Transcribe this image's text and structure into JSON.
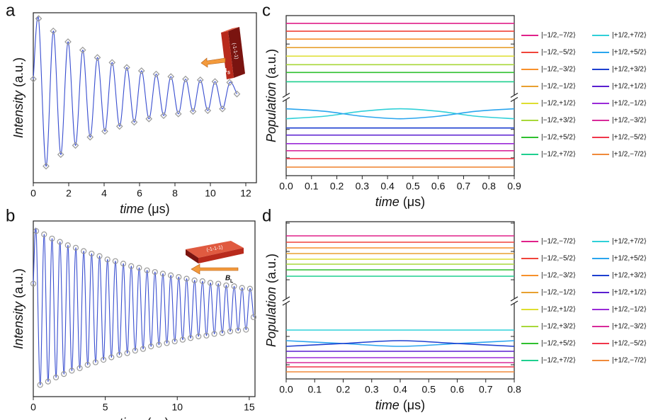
{
  "chart_data": [
    {
      "type": "line",
      "panel_label": "a",
      "y_label": "Intensity (a.u.)",
      "x_label": "time (μs)",
      "xlim": [
        0,
        12.6
      ],
      "xticks": [
        0,
        2,
        4,
        6,
        8,
        10,
        12
      ],
      "ylim": [
        -1.05,
        1.0
      ],
      "inset": {
        "text": "B",
        "subscript": "S",
        "face": "(-1-1-1)"
      },
      "series": [
        {
          "color": "#3a4fd0",
          "marker": "diamond",
          "marker_color": "#9a9a9a",
          "x": [
            0,
            0.3,
            0.72,
            1.13,
            1.55,
            1.96,
            2.38,
            2.79,
            3.21,
            3.62,
            4.04,
            4.45,
            4.87,
            5.28,
            5.7,
            6.11,
            6.53,
            6.94,
            7.36,
            7.77,
            8.19,
            8.6,
            9.02,
            9.43,
            9.85,
            10.26,
            10.68,
            11.09,
            11.5
          ],
          "values": [
            0.2,
            0.93,
            -0.85,
            0.78,
            -0.71,
            0.65,
            -0.6,
            0.55,
            -0.5,
            0.46,
            -0.43,
            0.4,
            -0.37,
            0.34,
            -0.32,
            0.3,
            -0.28,
            0.26,
            -0.24,
            0.23,
            -0.22,
            0.2,
            -0.19,
            0.19,
            -0.18,
            0.17,
            -0.16,
            0.16,
            0.02
          ]
        }
      ]
    },
    {
      "type": "line",
      "panel_label": "b",
      "y_label": "Intensity (a.u.)",
      "x_label": "time (μs)",
      "xlim": [
        0,
        15.4
      ],
      "xticks": [
        0,
        5,
        10,
        15
      ],
      "ylim": [
        -1.05,
        1.05
      ],
      "inset": {
        "text": "B",
        "subscript": "L",
        "face": "(-1-1-1)"
      },
      "series": [
        {
          "color": "#3a4fd0",
          "marker": "circle",
          "marker_color": "#9a9a9a",
          "x": [
            0,
            0.2,
            0.475,
            0.75,
            1.025,
            1.3,
            1.575,
            1.85,
            2.125,
            2.4,
            2.675,
            2.95,
            3.225,
            3.5,
            3.775,
            4.05,
            4.325,
            4.6,
            4.875,
            5.15,
            5.425,
            5.7,
            5.975,
            6.25,
            6.525,
            6.8,
            7.075,
            7.35,
            7.625,
            7.9,
            8.175,
            8.45,
            8.725,
            9.0,
            9.275,
            9.55,
            9.825,
            10.1,
            10.375,
            10.65,
            10.925,
            11.2,
            11.475,
            11.75,
            12.025,
            12.3,
            12.575,
            12.85,
            13.125,
            13.4,
            13.675,
            13.95,
            14.225,
            14.5,
            14.775,
            15.05,
            15.3
          ],
          "values": [
            0.3,
            0.93,
            -0.91,
            0.89,
            -0.87,
            0.84,
            -0.82,
            0.8,
            -0.78,
            0.76,
            -0.74,
            0.73,
            -0.71,
            0.69,
            -0.67,
            0.66,
            -0.64,
            0.63,
            -0.61,
            0.59,
            -0.58,
            0.57,
            -0.55,
            0.54,
            -0.53,
            0.51,
            -0.5,
            0.49,
            -0.48,
            0.46,
            -0.45,
            0.44,
            -0.43,
            0.42,
            -0.41,
            0.4,
            -0.39,
            0.38,
            -0.37,
            0.36,
            -0.35,
            0.34,
            -0.33,
            0.33,
            -0.32,
            0.31,
            -0.3,
            0.3,
            -0.29,
            0.28,
            -0.27,
            0.27,
            -0.26,
            0.25,
            -0.25,
            0.24,
            -0.1
          ]
        }
      ]
    },
    {
      "type": "line",
      "panel_label": "c",
      "y_label": "Population (a.u.)",
      "x_label": "time (μs)",
      "x": [
        0,
        0.15,
        0.3,
        0.45,
        0.6,
        0.75,
        0.9
      ],
      "xlim": [
        0,
        0.9
      ],
      "xticks": [
        {
          "value": 0,
          "label": "0.0"
        },
        0.1,
        0.2,
        0.3,
        0.4,
        0.5,
        0.6,
        0.7,
        0.8,
        0.9
      ],
      "ylim": [
        0,
        22.5
      ],
      "yticks": [
        2.5,
        6.5,
        14.5,
        18.5,
        22.5
      ],
      "ytick_labels": false,
      "axis_break": 11,
      "legend": "right",
      "series": [
        {
          "name": "|−1/2,−7/2⟩",
          "color": "#e0218a",
          "values": [
            21.4,
            21.4,
            21.4,
            21.4,
            21.4,
            21.4,
            21.4
          ]
        },
        {
          "name": "|−1/2,−5/2⟩",
          "color": "#f0443a",
          "values": [
            20.3,
            20.3,
            20.3,
            20.3,
            20.3,
            20.3,
            20.3
          ]
        },
        {
          "name": "|−1/2,−3/2⟩",
          "color": "#f7902a",
          "values": [
            19.2,
            19.2,
            19.2,
            19.2,
            19.2,
            19.2,
            19.2
          ]
        },
        {
          "name": "|−1/2,−1/2⟩",
          "color": "#e8a030",
          "values": [
            18.0,
            18.0,
            18.0,
            18.0,
            18.0,
            18.0,
            18.0
          ]
        },
        {
          "name": "|−1/2,+1/2⟩",
          "color": "#dede30",
          "values": [
            16.8,
            16.8,
            16.8,
            16.8,
            16.8,
            16.8,
            16.8
          ]
        },
        {
          "name": "|−1/2,+3/2⟩",
          "color": "#a8d83a",
          "values": [
            15.6,
            15.6,
            15.6,
            15.6,
            15.6,
            15.6,
            15.6
          ]
        },
        {
          "name": "|−1/2,+5/2⟩",
          "color": "#2fc02f",
          "values": [
            14.5,
            14.5,
            14.5,
            14.5,
            14.5,
            14.5,
            14.5
          ]
        },
        {
          "name": "|−1/2,+7/2⟩",
          "color": "#1fcf8f",
          "values": [
            13.2,
            13.2,
            13.2,
            13.2,
            13.2,
            13.2,
            13.2
          ]
        },
        {
          "name": "|+1/2,+7/2⟩",
          "color": "#2fd0d8",
          "values": [
            8.0,
            8.35,
            9.05,
            9.4,
            9.05,
            8.35,
            8.0
          ]
        },
        {
          "name": "|+1/2,+5/2⟩",
          "color": "#2aa5ee",
          "values": [
            9.4,
            9.05,
            8.35,
            8.0,
            8.35,
            9.05,
            9.4
          ]
        },
        {
          "name": "|+1/2,+3/2⟩",
          "color": "#1d3fd0",
          "values": [
            6.7,
            6.7,
            6.7,
            6.7,
            6.7,
            6.7,
            6.7
          ]
        },
        {
          "name": "|+1/2,+1/2⟩",
          "color": "#5a1fd0",
          "values": [
            5.7,
            5.7,
            5.7,
            5.7,
            5.7,
            5.7,
            5.7
          ]
        },
        {
          "name": "|+1/2,−1/2⟩",
          "color": "#9a2ad8",
          "values": [
            4.5,
            4.5,
            4.5,
            4.5,
            4.5,
            4.5,
            4.5
          ]
        },
        {
          "name": "|+1/2,−3/2⟩",
          "color": "#d82a9a",
          "values": [
            3.5,
            3.5,
            3.5,
            3.5,
            3.5,
            3.5,
            3.5
          ]
        },
        {
          "name": "|+1/2,−5/2⟩",
          "color": "#f0364a",
          "values": [
            2.4,
            2.4,
            2.4,
            2.4,
            2.4,
            2.4,
            2.4
          ]
        },
        {
          "name": "|+1/2,−7/2⟩",
          "color": "#f08a3a",
          "values": [
            1.2,
            1.2,
            1.2,
            1.2,
            1.2,
            1.2,
            1.2
          ]
        }
      ]
    },
    {
      "type": "line",
      "panel_label": "d",
      "y_label": "Population (a.u.)",
      "x_label": "time (μs)",
      "x": [
        0,
        0.2,
        0.4,
        0.6,
        0.8
      ],
      "xlim": [
        0,
        0.8
      ],
      "xticks": [
        {
          "value": 0,
          "label": "0.0"
        },
        0.1,
        0.2,
        0.3,
        0.4,
        0.5,
        0.6,
        0.7,
        0.8
      ],
      "ylim": [
        0,
        22.2
      ],
      "yticks": [
        2,
        6,
        14,
        18,
        22
      ],
      "ytick_labels": false,
      "axis_break": 11,
      "legend": "right",
      "series": [
        {
          "name": "|−1/2,−7/2⟩",
          "color": "#e0218a",
          "values": [
            20.2,
            20.2,
            20.2,
            20.2,
            20.2
          ]
        },
        {
          "name": "|−1/2,−5/2⟩",
          "color": "#f0443a",
          "values": [
            19.3,
            19.3,
            19.3,
            19.3,
            19.3
          ]
        },
        {
          "name": "|−1/2,−3/2⟩",
          "color": "#f7902a",
          "values": [
            18.5,
            18.5,
            18.5,
            18.5,
            18.5
          ]
        },
        {
          "name": "|−1/2,−1/2⟩",
          "color": "#e8a030",
          "values": [
            17.7,
            17.7,
            17.7,
            17.7,
            17.7
          ]
        },
        {
          "name": "|−1/2,+1/2⟩",
          "color": "#dede30",
          "values": [
            16.9,
            16.9,
            16.9,
            16.9,
            16.9
          ]
        },
        {
          "name": "|−1/2,+3/2⟩",
          "color": "#a8d83a",
          "values": [
            16.2,
            16.2,
            16.2,
            16.2,
            16.2
          ]
        },
        {
          "name": "|−1/2,+5/2⟩",
          "color": "#2fc02f",
          "values": [
            15.4,
            15.4,
            15.4,
            15.4,
            15.4
          ]
        },
        {
          "name": "|−1/2,+7/2⟩",
          "color": "#1fcf8f",
          "values": [
            14.5,
            14.5,
            14.5,
            14.5,
            14.5
          ]
        },
        {
          "name": "|+1/2,+7/2⟩",
          "color": "#2fd0d8",
          "values": [
            6.9,
            6.9,
            6.9,
            6.9,
            6.9
          ]
        },
        {
          "name": "|+1/2,+5/2⟩",
          "color": "#2aa5ee",
          "values": [
            5.4,
            5.0,
            4.6,
            5.0,
            5.4
          ]
        },
        {
          "name": "|+1/2,+3/2⟩",
          "color": "#1d3fd0",
          "values": [
            4.6,
            5.0,
            5.4,
            5.0,
            4.6
          ]
        },
        {
          "name": "|+1/2,+1/2⟩",
          "color": "#5a1fd0",
          "values": [
            3.9,
            3.9,
            3.9,
            3.9,
            3.9
          ]
        },
        {
          "name": "|+1/2,−1/2⟩",
          "color": "#9a2ad8",
          "values": [
            3.0,
            3.0,
            3.0,
            3.0,
            3.0
          ]
        },
        {
          "name": "|+1/2,−3/2⟩",
          "color": "#d82a9a",
          "values": [
            2.3,
            2.3,
            2.3,
            2.3,
            2.3
          ]
        },
        {
          "name": "|+1/2,−5/2⟩",
          "color": "#f0364a",
          "values": [
            1.7,
            1.7,
            1.7,
            1.7,
            1.7
          ]
        },
        {
          "name": "|+1/2,−7/2⟩",
          "color": "#f08a3a",
          "values": [
            1.0,
            1.0,
            1.0,
            1.0,
            1.0
          ]
        }
      ]
    }
  ]
}
